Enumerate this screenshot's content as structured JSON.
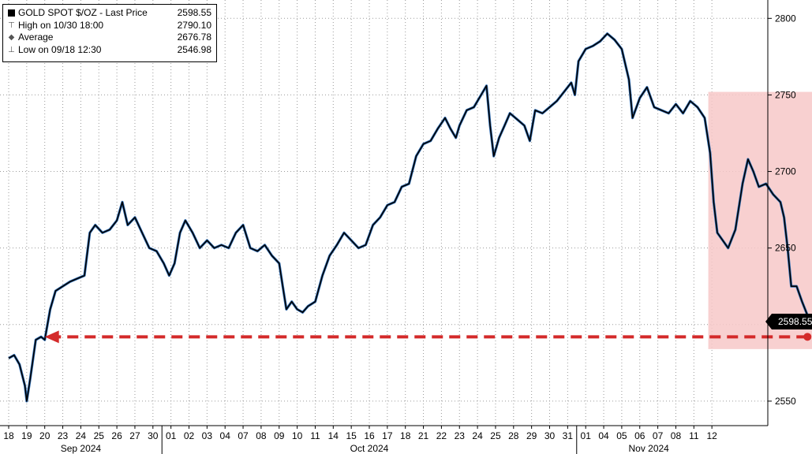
{
  "legend": {
    "title": "GOLD SPOT $/OZ - Last Price",
    "title_value": "2598.55",
    "high_label": "High on 10/30 18:00",
    "high_value": "2790.10",
    "avg_label": "Average",
    "avg_value": "2676.78",
    "low_label": "Low on 09/18 12:30",
    "low_value": "2546.98"
  },
  "last_price_tag": "2598.55",
  "colors": {
    "line": "#000000",
    "line_highlight": "#2e6db4",
    "shade": "#f7c8c8",
    "arrow": "#d42a2a"
  },
  "chart_data": {
    "type": "line",
    "title": "",
    "xlabel": "",
    "ylabel": "",
    "ylim": [
      2534,
      2812
    ],
    "yticks": [
      2550,
      2600,
      2650,
      2700,
      2750,
      2800
    ],
    "grid": true,
    "x_ticks": [
      "18",
      "19",
      "20",
      "23",
      "24",
      "25",
      "26",
      "27",
      "30",
      "01",
      "02",
      "03",
      "04",
      "07",
      "08",
      "09",
      "10",
      "11",
      "14",
      "15",
      "16",
      "17",
      "18",
      "21",
      "22",
      "23",
      "24",
      "25",
      "28",
      "29",
      "30",
      "31",
      "01",
      "04",
      "05",
      "06",
      "07",
      "08",
      "11",
      "12"
    ],
    "month_labels": [
      {
        "label": "Sep 2024",
        "start_tick": 0,
        "end_tick": 8
      },
      {
        "label": "Oct 2024",
        "start_tick": 9,
        "end_tick": 31
      },
      {
        "label": "Nov 2024",
        "start_tick": 32,
        "end_tick": 39
      }
    ],
    "series": [
      {
        "name": "GOLD SPOT $/OZ",
        "points": [
          [
            0,
            2578
          ],
          [
            0.3,
            2580
          ],
          [
            0.6,
            2574
          ],
          [
            0.9,
            2560
          ],
          [
            1.0,
            2550
          ],
          [
            1.2,
            2565
          ],
          [
            1.5,
            2590
          ],
          [
            1.8,
            2592
          ],
          [
            2.0,
            2590
          ],
          [
            2.3,
            2610
          ],
          [
            2.6,
            2622
          ],
          [
            3.0,
            2625
          ],
          [
            3.4,
            2628
          ],
          [
            3.8,
            2630
          ],
          [
            4.2,
            2632
          ],
          [
            4.5,
            2660
          ],
          [
            4.8,
            2665
          ],
          [
            5.2,
            2660
          ],
          [
            5.6,
            2662
          ],
          [
            6.0,
            2668
          ],
          [
            6.3,
            2680
          ],
          [
            6.6,
            2665
          ],
          [
            7.0,
            2670
          ],
          [
            7.4,
            2660
          ],
          [
            7.8,
            2650
          ],
          [
            8.2,
            2648
          ],
          [
            8.6,
            2640
          ],
          [
            8.9,
            2632
          ],
          [
            9.2,
            2640
          ],
          [
            9.5,
            2660
          ],
          [
            9.8,
            2668
          ],
          [
            10.2,
            2660
          ],
          [
            10.6,
            2650
          ],
          [
            11.0,
            2655
          ],
          [
            11.4,
            2650
          ],
          [
            11.8,
            2652
          ],
          [
            12.2,
            2650
          ],
          [
            12.6,
            2660
          ],
          [
            13.0,
            2665
          ],
          [
            13.4,
            2650
          ],
          [
            13.8,
            2648
          ],
          [
            14.2,
            2652
          ],
          [
            14.6,
            2645
          ],
          [
            15.0,
            2640
          ],
          [
            15.2,
            2625
          ],
          [
            15.4,
            2610
          ],
          [
            15.7,
            2615
          ],
          [
            16.0,
            2610
          ],
          [
            16.3,
            2608
          ],
          [
            16.6,
            2612
          ],
          [
            17.0,
            2615
          ],
          [
            17.4,
            2632
          ],
          [
            17.8,
            2645
          ],
          [
            18.2,
            2652
          ],
          [
            18.6,
            2660
          ],
          [
            19.0,
            2655
          ],
          [
            19.4,
            2650
          ],
          [
            19.8,
            2652
          ],
          [
            20.2,
            2665
          ],
          [
            20.6,
            2670
          ],
          [
            21.0,
            2678
          ],
          [
            21.4,
            2680
          ],
          [
            21.8,
            2690
          ],
          [
            22.2,
            2692
          ],
          [
            22.6,
            2710
          ],
          [
            23.0,
            2718
          ],
          [
            23.4,
            2720
          ],
          [
            23.8,
            2728
          ],
          [
            24.2,
            2735
          ],
          [
            24.5,
            2728
          ],
          [
            24.8,
            2722
          ],
          [
            25.0,
            2730
          ],
          [
            25.4,
            2740
          ],
          [
            25.8,
            2742
          ],
          [
            26.2,
            2750
          ],
          [
            26.5,
            2756
          ],
          [
            26.7,
            2730
          ],
          [
            26.9,
            2710
          ],
          [
            27.2,
            2722
          ],
          [
            27.5,
            2730
          ],
          [
            27.8,
            2738
          ],
          [
            28.2,
            2734
          ],
          [
            28.6,
            2730
          ],
          [
            28.9,
            2720
          ],
          [
            29.2,
            2740
          ],
          [
            29.6,
            2738
          ],
          [
            30.0,
            2742
          ],
          [
            30.4,
            2746
          ],
          [
            30.8,
            2752
          ],
          [
            31.2,
            2758
          ],
          [
            31.4,
            2750
          ],
          [
            31.6,
            2772
          ],
          [
            32.0,
            2780
          ],
          [
            32.4,
            2782
          ],
          [
            32.8,
            2785
          ],
          [
            33.2,
            2790
          ],
          [
            33.6,
            2786
          ],
          [
            34.0,
            2780
          ],
          [
            34.4,
            2760
          ],
          [
            34.6,
            2735
          ],
          [
            35.0,
            2748
          ],
          [
            35.4,
            2755
          ],
          [
            35.8,
            2742
          ],
          [
            36.2,
            2740
          ],
          [
            36.6,
            2738
          ],
          [
            37.0,
            2744
          ],
          [
            37.4,
            2738
          ],
          [
            37.8,
            2746
          ],
          [
            38.2,
            2742
          ],
          [
            38.6,
            2735
          ],
          [
            38.9,
            2712
          ],
          [
            39.1,
            2680
          ],
          [
            39.3,
            2660
          ],
          [
            39.6,
            2655
          ],
          [
            39.9,
            2650
          ],
          [
            40.3,
            2662
          ],
          [
            40.7,
            2692
          ],
          [
            41.0,
            2708
          ],
          [
            41.3,
            2700
          ],
          [
            41.6,
            2690
          ],
          [
            42.0,
            2692
          ],
          [
            42.4,
            2685
          ],
          [
            42.8,
            2680
          ],
          [
            43.0,
            2670
          ],
          [
            43.2,
            2650
          ],
          [
            43.4,
            2625
          ],
          [
            43.7,
            2625
          ],
          [
            44.0,
            2615
          ],
          [
            44.3,
            2606
          ],
          [
            44.5,
            2600
          ],
          [
            44.7,
            2602
          ],
          [
            45.0,
            2598.55
          ]
        ]
      }
    ],
    "highlight_range": {
      "x_start": 38.8,
      "x_end": 45.5,
      "y_low": 2584,
      "y_high": 2752
    },
    "annotations": [
      {
        "type": "arrow",
        "from": [
          44.3,
          2592
        ],
        "to": [
          2.0,
          2590
        ]
      }
    ]
  }
}
